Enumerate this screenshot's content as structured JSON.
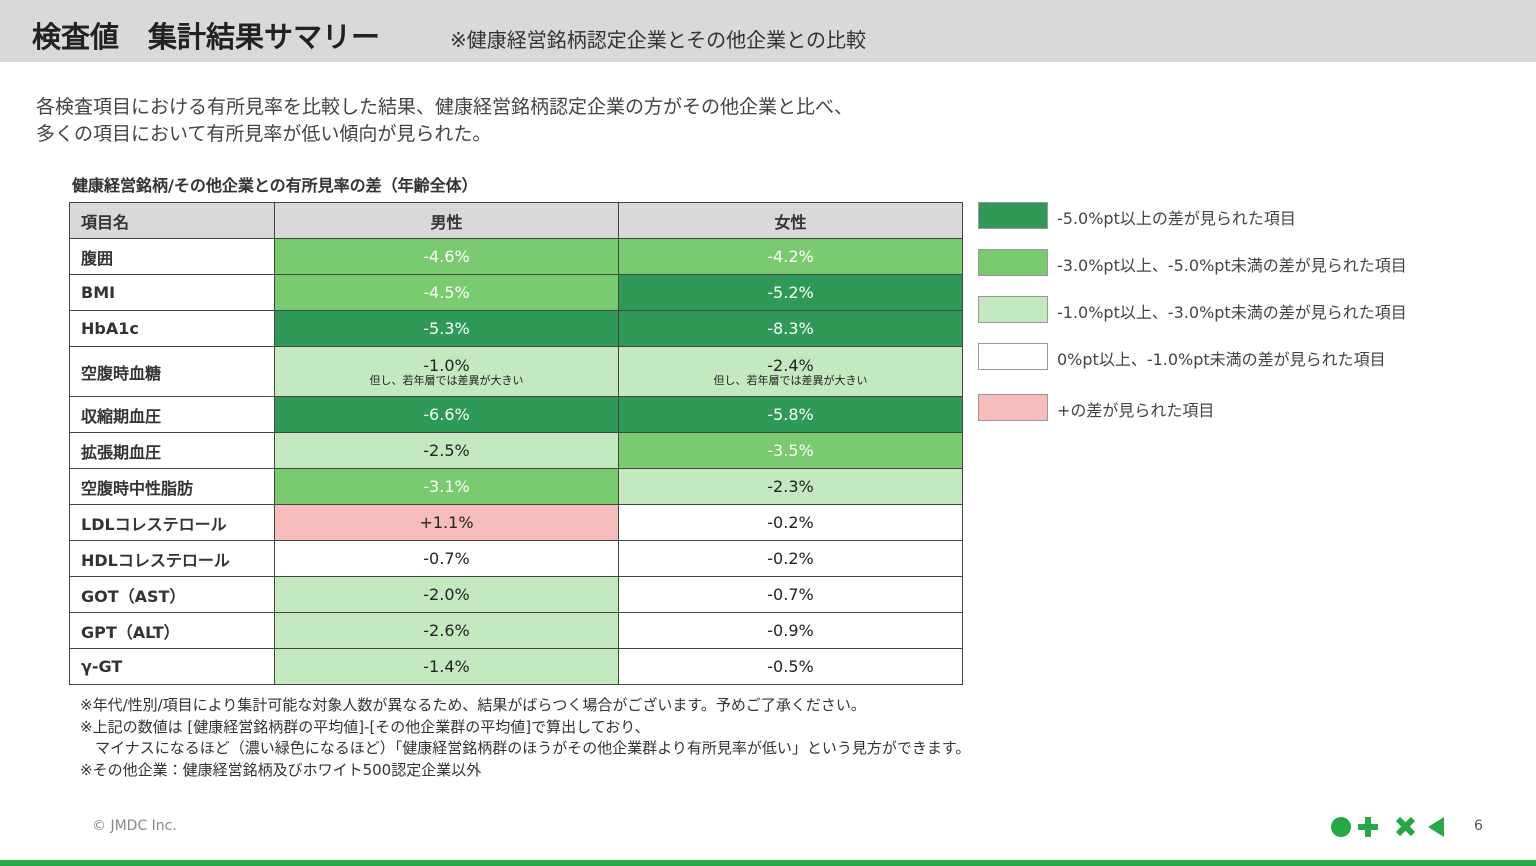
{
  "header": {
    "title": "検査値　集計結果サマリー",
    "subtitle": "※健康経営銘柄認定企業とその他企業との比較"
  },
  "description": [
    "各検査項目における有所見率を比較した結果、健康経営銘柄認定企業の方がその他企業と比べ、",
    "多くの項目において有所見率が低い傾向が見られた。"
  ],
  "table": {
    "caption": "健康経営銘柄/その他企業との有所見率の差（年齢全体）",
    "columns": [
      "項目名",
      "男性",
      "女性"
    ],
    "rows": [
      {
        "item": "腹囲",
        "cells": [
          {
            "text": "-4.6%",
            "color": "#7acb6f"
          },
          {
            "text": "-4.2%",
            "color": "#7acb6f"
          }
        ]
      },
      {
        "item": "BMI",
        "cells": [
          {
            "text": "-4.5%",
            "color": "#7acb6f"
          },
          {
            "text": "-5.2%",
            "color": "#2f9a57"
          }
        ]
      },
      {
        "item": "HbA1c",
        "cells": [
          {
            "text": "-5.3%",
            "color": "#2f9a57"
          },
          {
            "text": "-8.3%",
            "color": "#2f9a57"
          }
        ]
      },
      {
        "item": "空腹時血糖",
        "cells": [
          {
            "text": "-1.0%",
            "note": "但し、若年層では差異が大きい",
            "color": "#c4e8c0"
          },
          {
            "text": "-2.4%",
            "note": "但し、若年層では差異が大きい",
            "color": "#c4e8c0"
          }
        ]
      },
      {
        "item": "収縮期血圧",
        "cells": [
          {
            "text": "-6.6%",
            "color": "#2f9a57"
          },
          {
            "text": "-5.8%",
            "color": "#2f9a57"
          }
        ]
      },
      {
        "item": "拡張期血圧",
        "cells": [
          {
            "text": "-2.5%",
            "color": "#c4e8c0"
          },
          {
            "text": "-3.5%",
            "color": "#7acb6f"
          }
        ]
      },
      {
        "item": "空腹時中性脂肪",
        "cells": [
          {
            "text": "-3.1%",
            "color": "#7acb6f"
          },
          {
            "text": "-2.3%",
            "color": "#c4e8c0"
          }
        ]
      },
      {
        "item": "LDLコレステロール",
        "cells": [
          {
            "text": "+1.1%",
            "color": "#f7bcbc"
          },
          {
            "text": "-0.2%",
            "color": "#ffffff"
          }
        ]
      },
      {
        "item": "HDLコレステロール",
        "cells": [
          {
            "text": "-0.7%",
            "color": "#ffffff"
          },
          {
            "text": "-0.2%",
            "color": "#ffffff"
          }
        ]
      },
      {
        "item": "GOT（AST）",
        "cells": [
          {
            "text": "-2.0%",
            "color": "#c4e8c0"
          },
          {
            "text": "-0.7%",
            "color": "#ffffff"
          }
        ]
      },
      {
        "item": "GPT（ALT）",
        "cells": [
          {
            "text": "-2.6%",
            "color": "#c4e8c0"
          },
          {
            "text": "-0.9%",
            "color": "#ffffff"
          }
        ]
      },
      {
        "item": "γ-GT",
        "cells": [
          {
            "text": "-1.4%",
            "color": "#c4e8c0"
          },
          {
            "text": "-0.5%",
            "color": "#ffffff"
          }
        ]
      }
    ]
  },
  "legend": [
    {
      "color": "#2f9a57",
      "label": "-5.0%pt以上の差が見られた項目"
    },
    {
      "color": "#7acb6f",
      "label": "-3.0%pt以上、-5.0%pt未満の差が見られた項目"
    },
    {
      "color": "#c4e8c0",
      "label": "-1.0%pt以上、-3.0%pt未満の差が見られた項目"
    },
    {
      "color": "#ffffff",
      "label": "0%pt以上、-1.0%pt未満の差が見られた項目"
    },
    {
      "color": "#f7bcbc",
      "label": "+の差が見られた項目"
    }
  ],
  "notes": [
    "※年代/性別/項目により集計可能な対象人数が異なるため、結果がばらつく場合がございます。予めご了承ください。",
    "※上記の数値は [健康経営銘柄群の平均値]-[その他企業群の平均値]で算出しており、",
    "　マイナスになるほど（濃い緑色になるほど）「健康経営銘柄群のほうがその他企業群より有所見率が低い」という見方ができます。",
    "※その他企業：健康経営銘柄及びホワイト500認定企業以外"
  ],
  "footer": {
    "copyright": "© JMDC Inc.",
    "page": 6
  }
}
